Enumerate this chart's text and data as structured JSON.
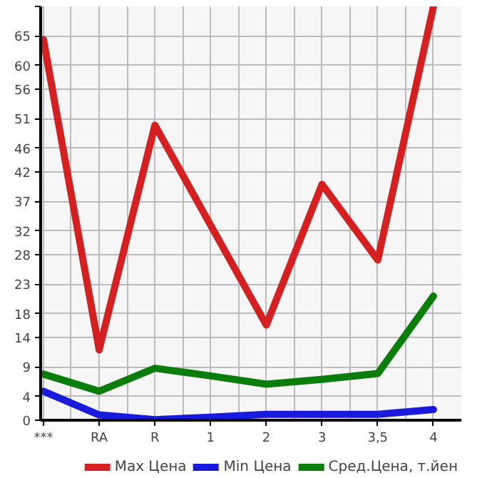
{
  "chart_data": {
    "type": "line",
    "categories": [
      "***",
      "RA",
      "R",
      "1",
      "2",
      "3",
      "3,5",
      "4"
    ],
    "series": [
      {
        "name": "Max Цена",
        "color": "#d42020",
        "values": [
          64.4,
          11.9,
          49.9,
          33.0,
          16.1,
          39.9,
          27.1,
          70
        ]
      },
      {
        "name": "Min Цена",
        "color": "#1a1adc",
        "values": [
          4.9,
          0.9,
          0.1,
          0.5,
          1.0,
          1.0,
          1.0,
          1.8
        ]
      },
      {
        "name": "Сред.Цена, т.йен",
        "color": "#0a7d0a",
        "values": [
          7.8,
          4.9,
          8.8,
          7.5,
          6.1,
          6.9,
          7.9,
          21.0
        ]
      }
    ],
    "ylim": [
      0,
      70
    ],
    "yticks": [
      0,
      4,
      9,
      14,
      18,
      23,
      28,
      32,
      37,
      42,
      46,
      51,
      56,
      60,
      65,
      {
        "value": 70,
        "label": null
      }
    ],
    "grid": true,
    "legend": "bottom",
    "marker": "none",
    "line_style": "solid"
  }
}
